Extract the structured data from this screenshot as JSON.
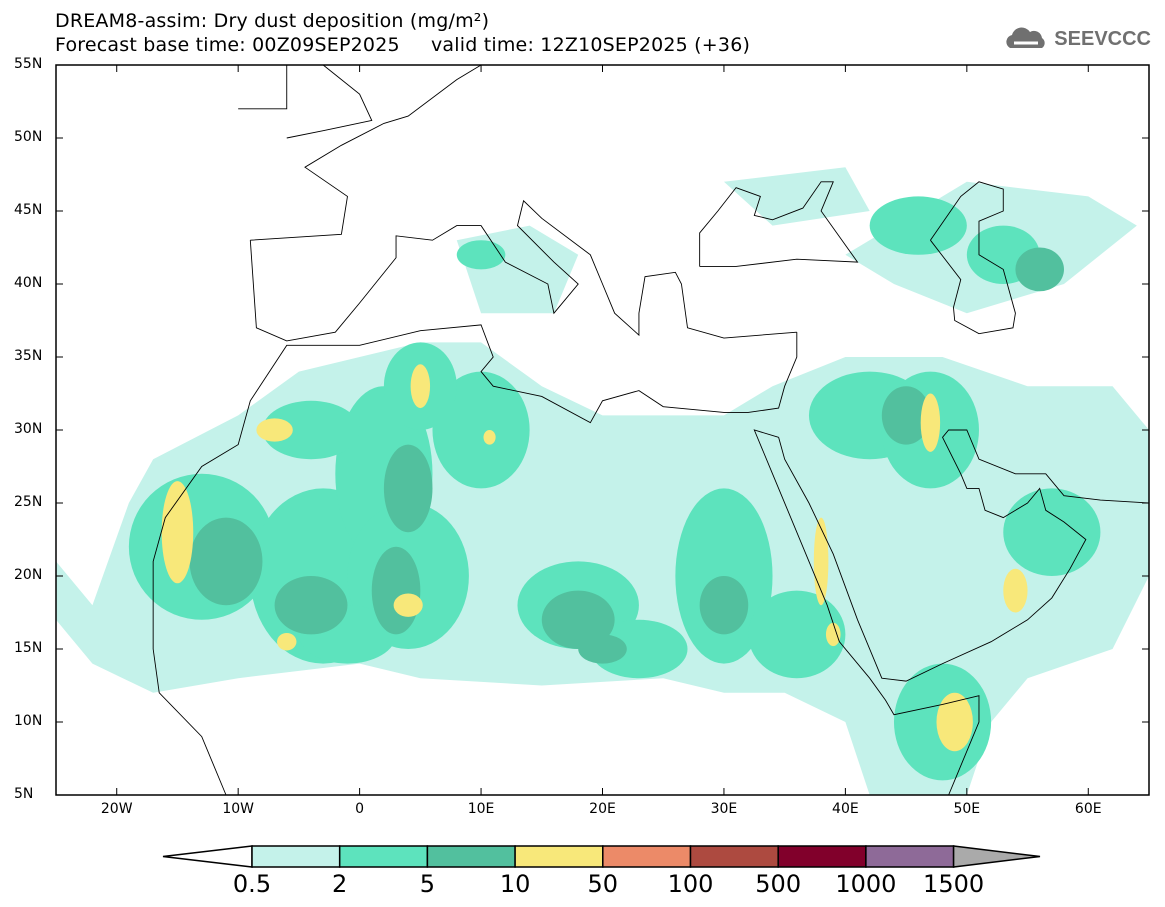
{
  "header": {
    "title": "DREAM8-assim: Dry dust deposition (mg/m²)",
    "subtitle": "Forecast base time: 00Z09SEP2025     valid time: 12Z10SEP2025 (+36)",
    "logo": "SEEVCCC"
  },
  "map": {
    "lon_range": [
      -25,
      65
    ],
    "lat_range": [
      5,
      55
    ],
    "lat_labels": [
      "55N",
      "50N",
      "45N",
      "40N",
      "35N",
      "30N",
      "25N",
      "20N",
      "15N",
      "10N",
      "5N"
    ],
    "lat_values": [
      55,
      50,
      45,
      40,
      35,
      30,
      25,
      20,
      15,
      10,
      5
    ],
    "lon_labels": [
      "20W",
      "10W",
      "0",
      "10E",
      "20E",
      "30E",
      "40E",
      "50E",
      "60E"
    ],
    "lon_values": [
      -20,
      -10,
      0,
      10,
      20,
      30,
      40,
      50,
      60
    ]
  },
  "colorbar": {
    "labels": [
      "0.5",
      "2",
      "5",
      "10",
      "50",
      "100",
      "500",
      "1000",
      "1500"
    ],
    "colors": [
      "#c4f2ea",
      "#5de3bd",
      "#52c09e",
      "#f8e87a",
      "#ec8a68",
      "#ad4a40",
      "#81002b",
      "#8e6a98"
    ],
    "under_color": "#ffffff",
    "over_color": "#aaaaaa"
  }
}
